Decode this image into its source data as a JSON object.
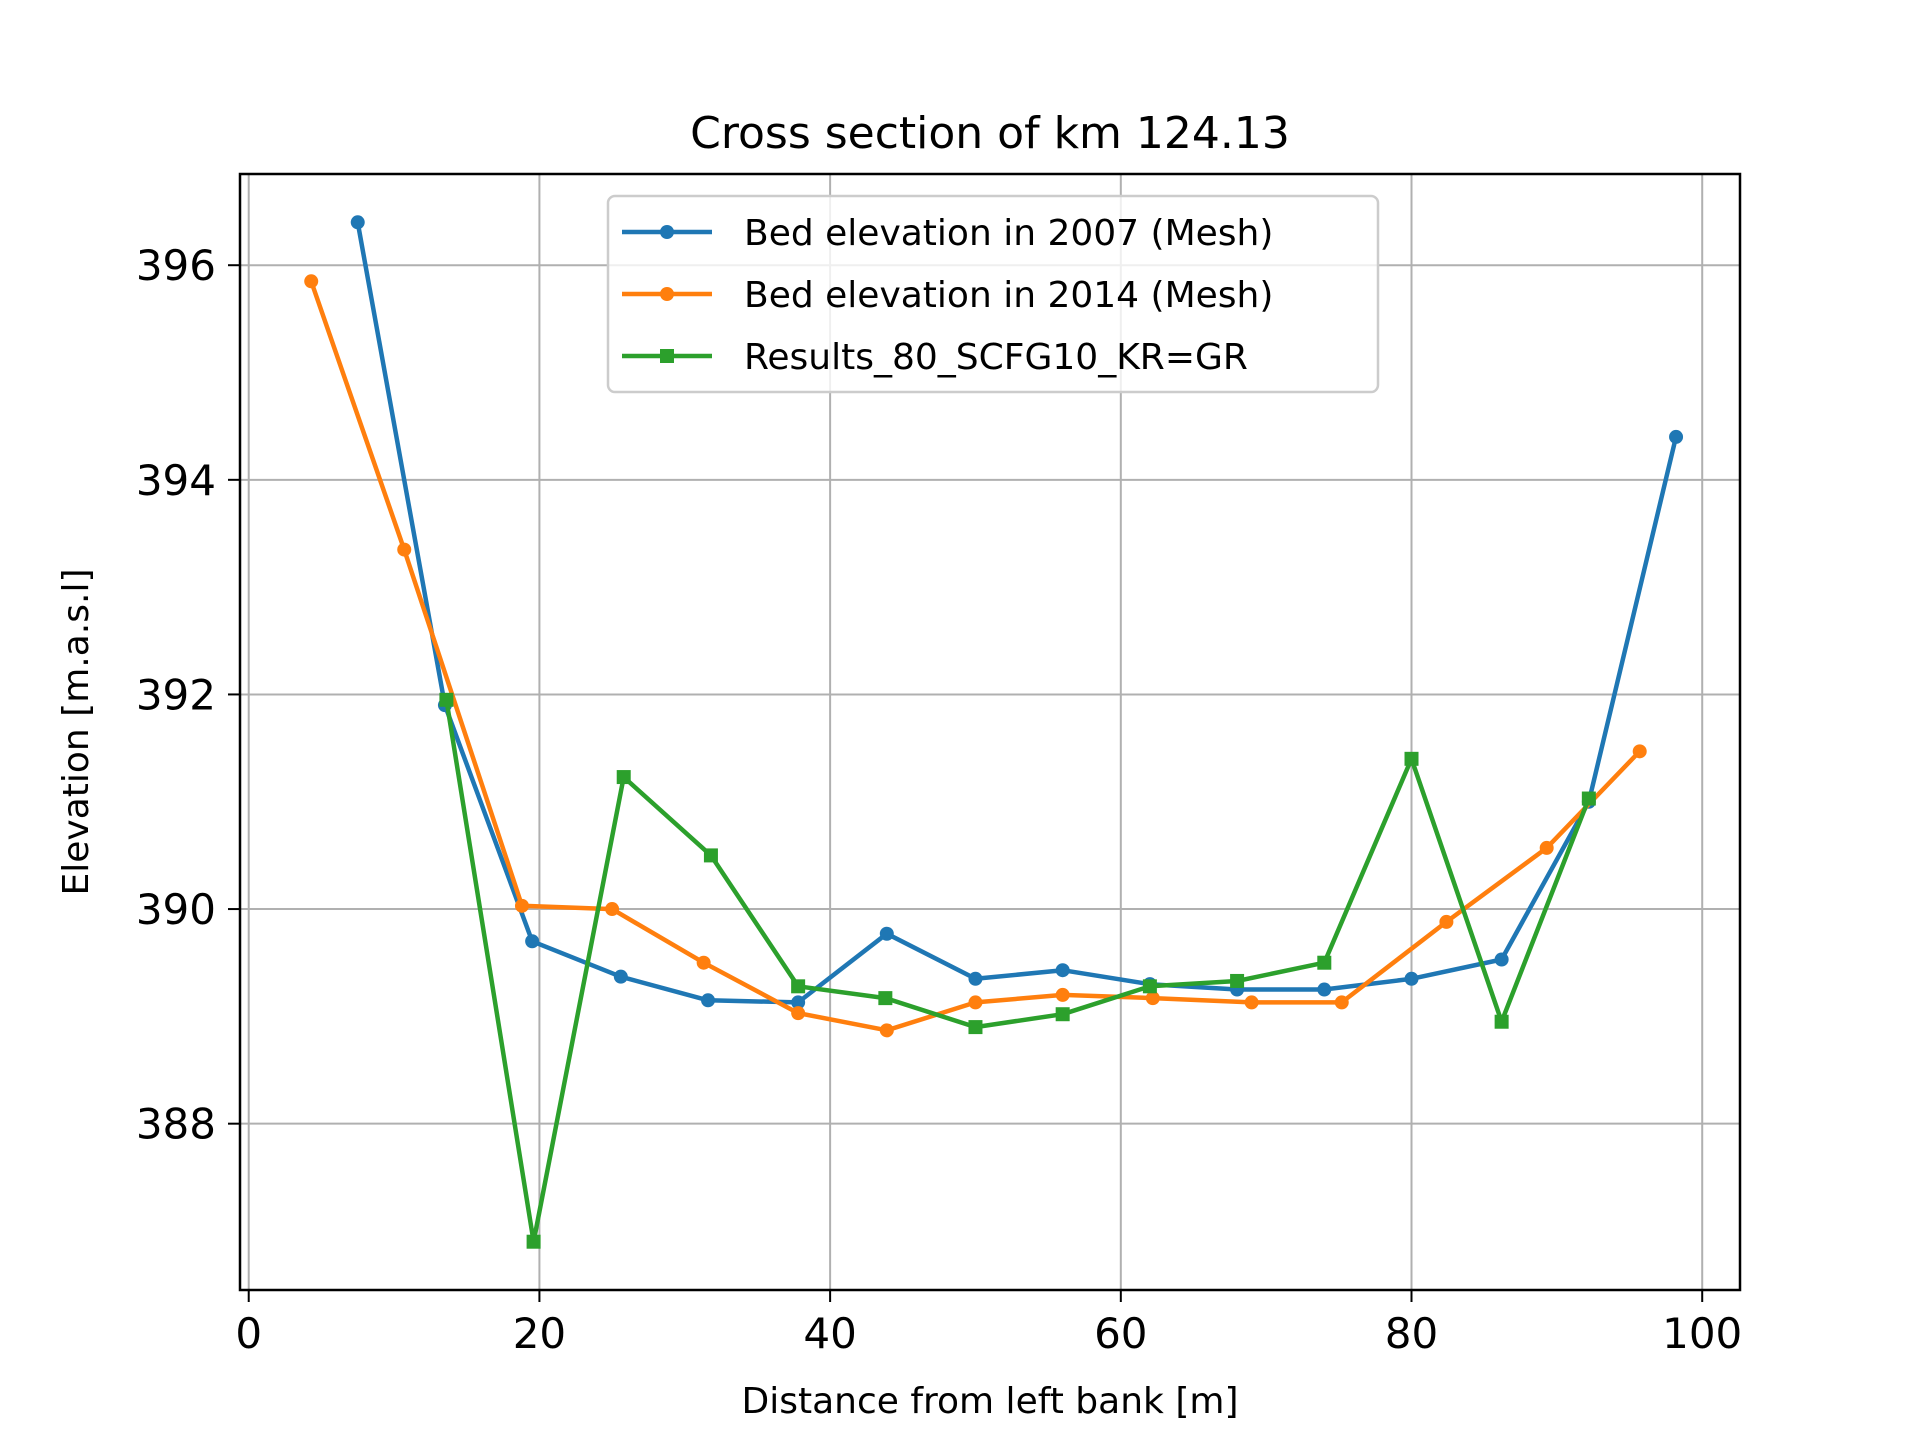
{
  "chart_data": {
    "type": "line",
    "title": "Cross section of km 124.13",
    "xlabel": "Distance from left bank [m]",
    "ylabel": "Elevation [m.a.s.l]",
    "xlim": [
      -0.6,
      102.6
    ],
    "ylim": [
      386.45,
      396.85
    ],
    "xticks": [
      0,
      20,
      40,
      60,
      80,
      100
    ],
    "yticks": [
      388,
      390,
      392,
      394,
      396
    ],
    "xtick_labels": [
      "0",
      "20",
      "40",
      "60",
      "80",
      "100"
    ],
    "ytick_labels": [
      "388",
      "390",
      "392",
      "394",
      "396"
    ],
    "grid": true,
    "legend_position": "upper-center",
    "series": [
      {
        "name": "Bed elevation in 2007 (Mesh)",
        "color": "#1f77b4",
        "marker": "circle",
        "x": [
          7.5,
          13.5,
          19.5,
          25.6,
          31.6,
          37.8,
          43.9,
          50.0,
          56.0,
          62.0,
          68.0,
          74.0,
          80.0,
          86.2,
          92.2,
          98.2
        ],
        "y": [
          396.4,
          391.9,
          389.7,
          389.37,
          389.15,
          389.13,
          389.77,
          389.35,
          389.43,
          389.3,
          389.25,
          389.25,
          389.35,
          389.53,
          391.0,
          394.4
        ]
      },
      {
        "name": "Bed elevation in 2014 (Mesh)",
        "color": "#ff7f0e",
        "marker": "circle",
        "x": [
          4.3,
          10.7,
          18.8,
          25.0,
          31.3,
          37.8,
          43.9,
          50.0,
          56.0,
          62.2,
          69.0,
          75.2,
          82.4,
          89.3,
          95.7
        ],
        "y": [
          395.85,
          393.35,
          390.03,
          390.0,
          389.5,
          389.03,
          388.87,
          389.13,
          389.2,
          389.17,
          389.13,
          389.13,
          389.88,
          390.57,
          391.47
        ]
      },
      {
        "name": "Results_80_SCFG10_KR=GR",
        "color": "#2ca02c",
        "marker": "square",
        "x": [
          13.6,
          19.6,
          25.8,
          31.8,
          37.8,
          43.8,
          50.0,
          56.0,
          62.0,
          68.0,
          74.0,
          80.0,
          86.2,
          92.2
        ],
        "y": [
          391.95,
          386.9,
          391.23,
          390.5,
          389.28,
          389.17,
          388.9,
          389.02,
          389.28,
          389.33,
          389.5,
          391.4,
          388.95,
          391.03
        ]
      }
    ]
  }
}
